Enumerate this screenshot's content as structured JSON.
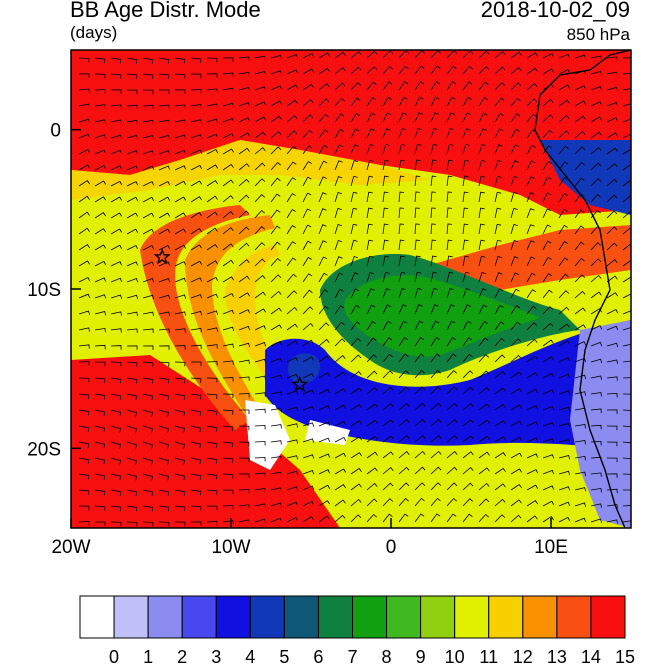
{
  "title": "BB Age Distr. Mode",
  "units": "(days)",
  "datetime": "2018-10-02_09",
  "level": "850 hPa",
  "map": {
    "lon_range": [
      -20,
      15
    ],
    "lat_range": [
      -25,
      5
    ],
    "x_ticks": [
      {
        "value": -20,
        "label": "20W"
      },
      {
        "value": -10,
        "label": "10W"
      },
      {
        "value": 0,
        "label": "0"
      },
      {
        "value": 10,
        "label": "10E"
      }
    ],
    "y_ticks": [
      {
        "value": 0,
        "label": "0"
      },
      {
        "value": -10,
        "label": "10S"
      },
      {
        "value": -20,
        "label": "20S"
      }
    ],
    "markers": [
      {
        "type": "star",
        "lon": -14.3,
        "lat": -8.0
      },
      {
        "type": "star",
        "lon": -5.7,
        "lat": -16.0
      }
    ]
  },
  "colorbar": {
    "labels": [
      "0",
      "1",
      "2",
      "3",
      "4",
      "5",
      "6",
      "7",
      "8",
      "9",
      "10",
      "11",
      "12",
      "13",
      "14",
      "15"
    ],
    "colors": [
      "#ffffff",
      "#c0c0f8",
      "#8c8cf0",
      "#4848f0",
      "#1010e0",
      "#1038b8",
      "#105878",
      "#108040",
      "#10a010",
      "#40b820",
      "#90d010",
      "#e0f000",
      "#f8d000",
      "#f89000",
      "#f85010",
      "#f81010"
    ]
  }
}
